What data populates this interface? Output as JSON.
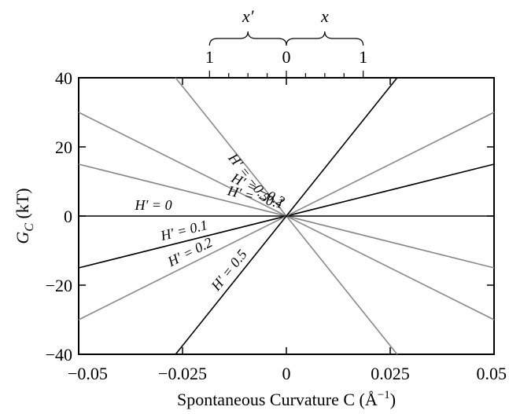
{
  "chart_data": {
    "type": "line",
    "xlabel": "Spontaneous Curvature C  (Å",
    "xlabel_unit_sup": "−1",
    "xlabel_close": ")",
    "ylabel": "G",
    "ylabel_sub": "C",
    "ylabel_unit": " (kT)",
    "xlim": [
      -0.05,
      0.05
    ],
    "ylim": [
      -40,
      40
    ],
    "x_ticks": [
      -0.05,
      -0.025,
      0,
      0.025,
      0.05
    ],
    "x_tick_labels": [
      "−0.05",
      "−0.025",
      "0",
      "0.025",
      "0.05"
    ],
    "y_ticks": [
      -40,
      -20,
      0,
      20,
      40
    ],
    "y_tick_labels": [
      "−40",
      "−20",
      "0",
      "20",
      "40"
    ],
    "grid": false,
    "top_scale": {
      "left_var": "x′",
      "right_var": "x",
      "ticks": [
        -0.0185,
        0,
        0.0185
      ],
      "tick_labels": [
        "1",
        "0",
        "1"
      ]
    },
    "series": [
      {
        "name": "H′ = −0.5",
        "slope": -1500,
        "color": "#888888"
      },
      {
        "name": "H′ = −0.2",
        "slope": -600,
        "color": "#888888"
      },
      {
        "name": "H′ = −0.1",
        "slope": -300,
        "color": "#888888"
      },
      {
        "name": "H′ = 0",
        "slope": 0,
        "color": "#000000"
      },
      {
        "name": "H′ = 0.1",
        "slope": 300,
        "color": "#000000"
      },
      {
        "name": "H′ = 0.2",
        "slope": 600,
        "color": "#888888"
      },
      {
        "name": "H′ = 0.5",
        "slope": 1500,
        "color": "#000000"
      }
    ],
    "annotations": [
      {
        "text": "H′ = −0.5",
        "series": 0
      },
      {
        "text": "H′ = −0.2",
        "series": 1
      },
      {
        "text": "H′ = −0.1",
        "series": 2
      },
      {
        "text": "H′ = 0",
        "series": 3
      },
      {
        "text": "H′ = 0.1",
        "series": 4
      },
      {
        "text": "H′ = 0.2",
        "series": 5
      },
      {
        "text": "H′ = 0.5",
        "series": 6
      }
    ]
  }
}
